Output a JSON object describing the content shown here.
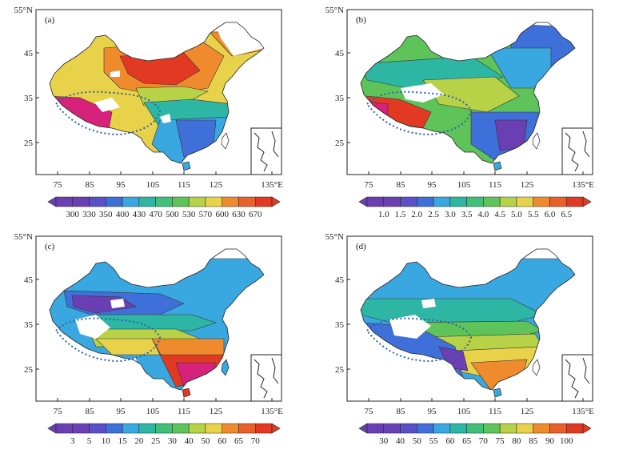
{
  "axes": {
    "x_ticks": [
      "75",
      "85",
      "95",
      "105",
      "115",
      "125",
      "135°E"
    ],
    "y_ticks": [
      "55°N",
      "45",
      "35",
      "25"
    ]
  },
  "colors": {
    "purple": "#6a3fb3",
    "blue": "#3f6fd8",
    "lightblue": "#3aa8e0",
    "teal": "#2db6a4",
    "green": "#5ec45a",
    "yellowgreen": "#b8d248",
    "yellow": "#e8d24a",
    "orange": "#ef8b2c",
    "red": "#e23a22",
    "magenta": "#d6227a",
    "dotted": "#2e5fa8",
    "missing": "#ffffff"
  },
  "panels": [
    {
      "label": "(a)",
      "colorbar": [
        "300",
        "330",
        "350",
        "400",
        "430",
        "470",
        "500",
        "530",
        "570",
        "600",
        "630",
        "670"
      ]
    },
    {
      "label": "(b)",
      "colorbar": [
        "1.0",
        "1.5",
        "2.0",
        "2.5",
        "3.0",
        "3.5",
        "4.0",
        "4.5",
        "5.0",
        "5.5",
        "6.0",
        "6.5"
      ]
    },
    {
      "label": "(c)",
      "colorbar": [
        "3",
        "5",
        "10",
        "15",
        "20",
        "25",
        "30",
        "40",
        "50",
        "60",
        "65",
        "70"
      ]
    },
    {
      "label": "(d)",
      "colorbar": [
        "30",
        "40",
        "50",
        "55",
        "60",
        "65",
        "70",
        "75",
        "80",
        "85",
        "90",
        "100"
      ]
    }
  ]
}
